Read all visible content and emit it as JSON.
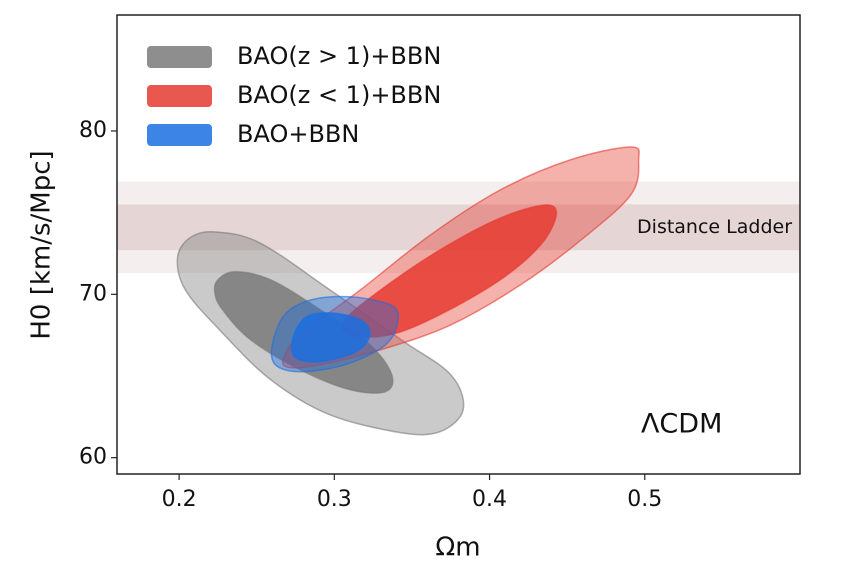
{
  "chart_data": {
    "type": "contour",
    "xlabel": "Ωm",
    "ylabel": "H0 [km/s/Mpc]",
    "xlim": [
      0.16,
      0.6
    ],
    "ylim": [
      59,
      87.1
    ],
    "xticks": [
      0.2,
      0.3,
      0.4,
      0.5
    ],
    "yticks": [
      60,
      70,
      80
    ],
    "legend": "upper left",
    "bands": [
      {
        "label": "Distance Ladder",
        "inner": [
          72.7,
          75.5
        ],
        "outer": [
          71.3,
          76.9
        ],
        "color": "#b98a8a"
      }
    ],
    "annotation": "ΛCDM",
    "series": [
      {
        "name": "BAO(z > 1)+BBN",
        "color": "#7a7a7a",
        "contours": [
          {
            "x": [
              0.199,
              0.207,
              0.223,
              0.252,
              0.297,
              0.343,
              0.375,
              0.383,
              0.368,
              0.343,
              0.297,
              0.259,
              0.226,
              0.204
            ],
            "y": [
              72.23,
              73.46,
              73.82,
              73.15,
              70.28,
              67.22,
              65.08,
              62.94,
              61.59,
              61.53,
              62.63,
              64.77,
              67.83,
              70.28
            ]
          },
          {
            "x": [
              0.225,
              0.236,
              0.259,
              0.291,
              0.323,
              0.337,
              0.333,
              0.31,
              0.278,
              0.246,
              0.228,
              0.223
            ],
            "y": [
              70.89,
              71.38,
              70.89,
              69.05,
              66.91,
              65.08,
              64.04,
              64.16,
              65.38,
              67.22,
              69.05,
              70.09
            ]
          }
        ]
      },
      {
        "name": "BAO(z < 1)+BBN",
        "color": "#e53b30",
        "contours": [
          {
            "x": [
              0.267,
              0.278,
              0.317,
              0.362,
              0.407,
              0.452,
              0.491,
              0.496,
              0.491,
              0.459,
              0.42,
              0.375,
              0.33,
              0.291,
              0.272
            ],
            "y": [
              65.99,
              67.52,
              70.28,
              73.64,
              76.39,
              78.23,
              79.02,
              78.23,
              76.09,
              73.33,
              70.58,
              68.13,
              66.61,
              65.69,
              65.5
            ]
          },
          {
            "x": [
              0.307,
              0.33,
              0.368,
              0.407,
              0.436,
              0.443,
              0.433,
              0.407,
              0.368,
              0.336,
              0.31
            ],
            "y": [
              68.44,
              70.28,
              72.72,
              74.68,
              75.47,
              74.86,
              73.03,
              70.89,
              68.75,
              67.52,
              67.52
            ]
          }
        ]
      },
      {
        "name": "BAO+BBN",
        "color": "#1a6fe0",
        "contours": [
          {
            "x": [
              0.26,
              0.268,
              0.285,
              0.31,
              0.336,
              0.341,
              0.333,
              0.307,
              0.278,
              0.262
            ],
            "y": [
              66.91,
              68.75,
              69.66,
              69.85,
              69.36,
              68.44,
              66.91,
              65.69,
              65.26,
              65.69
            ]
          },
          {
            "x": [
              0.273,
              0.281,
              0.297,
              0.317,
              0.323,
              0.314,
              0.291,
              0.275
            ],
            "y": [
              67.22,
              68.56,
              68.87,
              68.44,
              67.52,
              66.48,
              65.87,
              66.12
            ]
          }
        ]
      }
    ]
  }
}
